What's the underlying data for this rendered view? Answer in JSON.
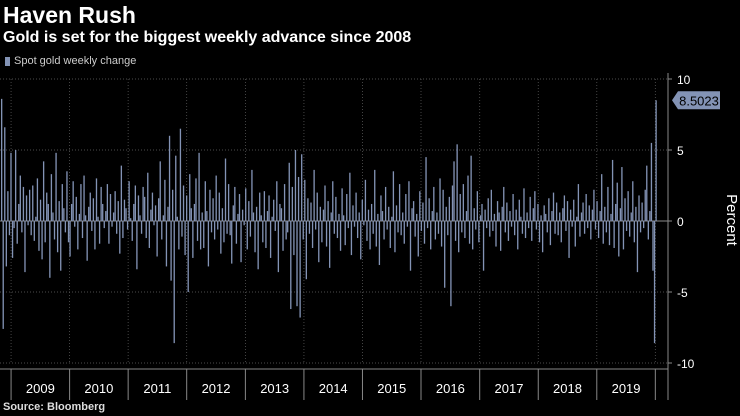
{
  "title": "Haven Rush",
  "subtitle": "Gold is set for the biggest weekly advance since 2008",
  "legend_label": "Spot gold weekly change",
  "source": "Source: Bloomberg",
  "bar_color": "#8393b5",
  "chart_data": {
    "type": "bar",
    "series": [
      {
        "name": "Spot gold weekly change"
      }
    ],
    "ylabel": "Percent",
    "ylim": [
      -10,
      10
    ],
    "y_ticks": [
      10,
      5,
      0,
      -5,
      -10
    ],
    "x_tick_labels": [
      "2009",
      "2010",
      "2011",
      "2012",
      "2013",
      "2014",
      "2015",
      "2016",
      "2017",
      "2018",
      "2019"
    ],
    "x_range": [
      "2008-10-24",
      "2020-03-20"
    ],
    "last_value_label": "8.5023",
    "weekly_change_pct": [
      8.6,
      -7.6,
      6.6,
      -3.2,
      2.1,
      -1.0,
      4.8,
      -2.6,
      -0.5,
      5.0,
      -1.6,
      1.2,
      3.2,
      -0.8,
      2.4,
      -3.6,
      1.8,
      -0.3,
      2.2,
      -1.0,
      2.5,
      -1.4,
      0.3,
      3.0,
      -2.1,
      1.5,
      -2.7,
      4.2,
      -1.5,
      2.0,
      1.2,
      -4.0,
      3.3,
      0.6,
      -1.3,
      4.8,
      -2.2,
      1.4,
      -3.5,
      2.6,
      0.9,
      -0.8,
      3.5,
      -1.5,
      -2.5,
      1.2,
      2.8,
      -0.4,
      1.7,
      -2.0,
      0.5,
      2.6,
      -1.2,
      3.2,
      0.4,
      -2.8,
      1.0,
      2.0,
      -0.7,
      1.6,
      -2.0,
      3.0,
      0.3,
      -1.6,
      2.4,
      1.2,
      -0.5,
      0.7,
      2.6,
      -1.6,
      1.9,
      -0.4,
      0.6,
      2.1,
      -0.9,
      1.4,
      -2.3,
      3.9,
      -1.2,
      1.5,
      0.9,
      -0.6,
      2.8,
      0.2,
      -1.4,
      1.2,
      2.5,
      -3.4,
      1.8,
      0.4,
      -0.9,
      2.4,
      1.7,
      -1.2,
      3.4,
      -1.9,
      0.8,
      2.0,
      -0.3,
      1.1,
      -2.5,
      1.6,
      4.2,
      -1.3,
      0.4,
      2.9,
      -3.2,
      1.0,
      6.0,
      -4.2,
      2.2,
      -8.6,
      4.6,
      0.3,
      -2.0,
      6.5,
      -1.1,
      2.5,
      -2.4,
      1.8,
      -5.0,
      3.3,
      0.9,
      -2.6,
      1.2,
      3.0,
      -1.4,
      4.8,
      -2.0,
      0.6,
      -1.9,
      2.8,
      0.7,
      -3.2,
      2.2,
      -0.8,
      1.6,
      -1.3,
      3.2,
      -0.6,
      2.0,
      -2.3,
      0.9,
      -1.5,
      4.4,
      -0.9,
      2.6,
      -1.0,
      -3.0,
      1.1,
      2.4,
      -1.6,
      0.5,
      1.9,
      -2.9,
      0.8,
      -0.3,
      2.3,
      -2.0,
      1.4,
      -1.1,
      3.6,
      0.6,
      -2.2,
      1.0,
      -3.4,
      2.0,
      0.4,
      -1.5,
      2.1,
      -1.9,
      0.7,
      1.8,
      -2.6,
      0.3,
      1.5,
      -0.7,
      2.8,
      -3.6,
      1.2,
      0.9,
      -2.1,
      2.6,
      -1.3,
      -0.8,
      4.1,
      -6.2,
      2.4,
      -2.4,
      5.0,
      -6.0,
      3.1,
      -6.8,
      4.7,
      -1.3,
      2.9,
      -4.1,
      1.6,
      -0.9,
      1.3,
      -1.9,
      3.6,
      -0.6,
      2.0,
      -2.9,
      1.0,
      -1.5,
      0.8,
      2.5,
      -1.8,
      1.4,
      -3.3,
      0.6,
      2.8,
      -0.9,
      1.7,
      -1.2,
      0.5,
      -2.1,
      2.3,
      0.4,
      -1.7,
      1.9,
      -0.5,
      3.4,
      -2.4,
      1.1,
      -0.4,
      2.0,
      -1.2,
      0.6,
      -2.7,
      1.5,
      -0.3,
      2.9,
      -1.4,
      0.8,
      -2.0,
      1.2,
      -0.9,
      3.6,
      -1.8,
      0.5,
      -3.1,
      1.8,
      0.7,
      -1.3,
      2.4,
      -0.6,
      1.0,
      -1.9,
      0.3,
      3.5,
      -2.2,
      1.1,
      -0.8,
      2.6,
      -1.0,
      0.6,
      -1.6,
      1.9,
      -0.4,
      2.8,
      -3.5,
      0.9,
      1.4,
      -1.1,
      0.5,
      -2.5,
      2.1,
      -0.7,
      1.3,
      -1.6,
      4.5,
      -0.5,
      1.6,
      -2.0,
      0.7,
      2.4,
      -1.3,
      0.6,
      -0.9,
      3.0,
      -1.8,
      2.2,
      -4.7,
      1.0,
      -1.0,
      1.7,
      -6.0,
      2.5,
      4.2,
      -1.4,
      5.4,
      -2.2,
      1.9,
      -0.8,
      2.6,
      -1.2,
      0.7,
      3.2,
      -1.6,
      4.6,
      -2.0,
      0.9,
      -0.6,
      2.1,
      -1.5,
      0.4,
      1.2,
      -3.5,
      0.8,
      -0.5,
      1.6,
      -1.1,
      2.2,
      -0.7,
      0.5,
      -1.8,
      1.4,
      0.6,
      -2.1,
      1.0,
      2.4,
      -0.8,
      1.3,
      -1.4,
      0.7,
      -0.4,
      1.9,
      -1.0,
      0.8,
      -2.0,
      1.5,
      0.3,
      -0.9,
      2.3,
      -1.2,
      0.6,
      -0.5,
      1.7,
      -1.4,
      0.9,
      2.1,
      -0.6,
      1.2,
      -1.5,
      0.4,
      -2.2,
      1.1,
      0.5,
      -0.8,
      1.6,
      -1.7,
      0.7,
      2.0,
      -0.9,
      1.3,
      -1.0,
      0.6,
      -1.5,
      0.9,
      1.8,
      -0.7,
      1.4,
      -2.6,
      0.8,
      -0.4,
      1.5,
      -1.8,
      0.3,
      2.6,
      -1.1,
      0.6,
      1.3,
      -0.9,
      1.9,
      -0.5,
      1.1,
      -1.3,
      0.8,
      2.2,
      -0.6,
      1.4,
      -1.2,
      0.7,
      3.3,
      -1.6,
      1.0,
      -0.8,
      2.4,
      -1.7,
      0.5,
      4.3,
      -1.9,
      1.2,
      2.7,
      -2.5,
      0.9,
      3.8,
      -2.0,
      1.6,
      -0.7,
      2.1,
      -1.1,
      0.6,
      2.8,
      -1.5,
      1.0,
      -3.6,
      1.8,
      -0.8,
      1.3,
      -0.5,
      2.2,
      3.9,
      -1.3,
      0.7,
      5.5,
      -3.5,
      -8.6,
      8.5
    ]
  }
}
